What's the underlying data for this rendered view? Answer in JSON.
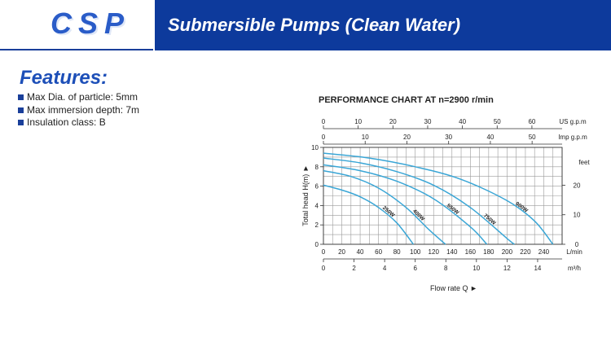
{
  "header": {
    "brand": "CSP",
    "title": "Submersible Pumps (Clean Water)",
    "brand_color": "#2a5cc8",
    "bar_color": "#0d3a9c"
  },
  "features": {
    "title": "Features:",
    "items": [
      "Max Dia. of particle: 5mm",
      "Max immersion depth: 7m",
      "Insulation class: B"
    ]
  },
  "chart_data": {
    "type": "line",
    "title": "PERFORMANCE CHART AT n=2900 r/min",
    "xlabel": "Flow rate  Q ►",
    "ylabel": "Total  head H(m) ►",
    "x_unit": "L/min",
    "xlim": [
      0,
      260
    ],
    "ylim": [
      0,
      10
    ],
    "grid": true,
    "line_color": "#3aa6d6",
    "x_ticks": [
      0,
      20,
      40,
      60,
      80,
      100,
      120,
      140,
      160,
      180,
      200,
      220,
      240
    ],
    "y_ticks": [
      0,
      2,
      4,
      6,
      8,
      10
    ],
    "right_axis": {
      "unit": "feet",
      "ticks": [
        0,
        10,
        20
      ]
    },
    "top_axes": [
      {
        "unit": "US g.p.m",
        "ticks": [
          0,
          10,
          20,
          30,
          40,
          50,
          60
        ]
      },
      {
        "unit": "Imp g.p.m",
        "ticks": [
          0,
          10,
          20,
          30,
          40,
          50
        ]
      }
    ],
    "bottom_axis2": {
      "unit": "m³/h",
      "ticks": [
        0,
        2,
        4,
        6,
        8,
        10,
        12,
        14
      ]
    },
    "series": [
      {
        "name": "250W",
        "points": [
          [
            0,
            6.1
          ],
          [
            20,
            5.6
          ],
          [
            40,
            4.9
          ],
          [
            60,
            3.8
          ],
          [
            80,
            2.2
          ],
          [
            98,
            0
          ]
        ]
      },
      {
        "name": "400W",
        "points": [
          [
            0,
            7.6
          ],
          [
            30,
            7.0
          ],
          [
            60,
            5.8
          ],
          [
            90,
            3.8
          ],
          [
            115,
            1.5
          ],
          [
            133,
            0
          ]
        ]
      },
      {
        "name": "550W",
        "points": [
          [
            0,
            8.2
          ],
          [
            40,
            7.6
          ],
          [
            80,
            6.5
          ],
          [
            120,
            4.7
          ],
          [
            160,
            1.8
          ],
          [
            178,
            0
          ]
        ]
      },
      {
        "name": "750W",
        "points": [
          [
            0,
            8.9
          ],
          [
            40,
            8.4
          ],
          [
            80,
            7.5
          ],
          [
            120,
            6.1
          ],
          [
            160,
            3.8
          ],
          [
            200,
            0.6
          ],
          [
            208,
            0
          ]
        ]
      },
      {
        "name": "900W",
        "points": [
          [
            0,
            9.4
          ],
          [
            50,
            8.9
          ],
          [
            100,
            8.0
          ],
          [
            150,
            6.7
          ],
          [
            200,
            4.5
          ],
          [
            230,
            2.4
          ],
          [
            250,
            0
          ]
        ]
      }
    ]
  }
}
